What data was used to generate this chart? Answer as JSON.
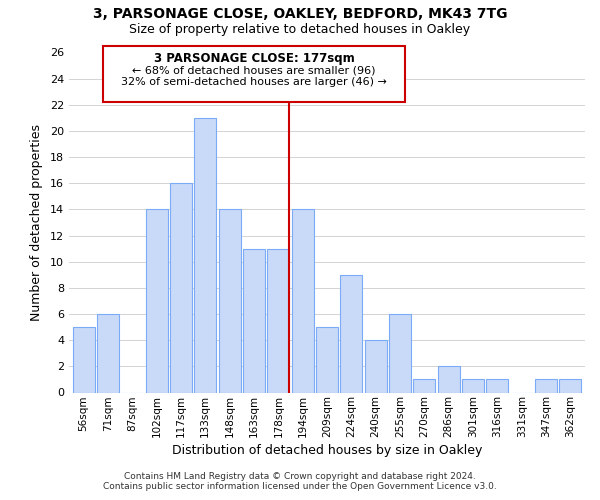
{
  "title": "3, PARSONAGE CLOSE, OAKLEY, BEDFORD, MK43 7TG",
  "subtitle": "Size of property relative to detached houses in Oakley",
  "xlabel": "Distribution of detached houses by size in Oakley",
  "ylabel": "Number of detached properties",
  "bar_labels": [
    "56sqm",
    "71sqm",
    "87sqm",
    "102sqm",
    "117sqm",
    "133sqm",
    "148sqm",
    "163sqm",
    "178sqm",
    "194sqm",
    "209sqm",
    "224sqm",
    "240sqm",
    "255sqm",
    "270sqm",
    "286sqm",
    "301sqm",
    "316sqm",
    "331sqm",
    "347sqm",
    "362sqm"
  ],
  "bar_values": [
    5,
    6,
    0,
    14,
    16,
    21,
    14,
    11,
    11,
    14,
    5,
    9,
    4,
    6,
    1,
    2,
    1,
    1,
    0,
    1,
    1
  ],
  "bar_color": "#c9daf8",
  "bar_edge_color": "#7baaf7",
  "grid_color": "#cccccc",
  "vline_index": 8,
  "vline_color": "#cc0000",
  "annotation_title": "3 PARSONAGE CLOSE: 177sqm",
  "annotation_line1": "← 68% of detached houses are smaller (96)",
  "annotation_line2": "32% of semi-detached houses are larger (46) →",
  "annotation_box_edge": "#cc0000",
  "ylim": [
    0,
    26
  ],
  "yticks": [
    0,
    2,
    4,
    6,
    8,
    10,
    12,
    14,
    16,
    18,
    20,
    22,
    24,
    26
  ],
  "footer1": "Contains HM Land Registry data © Crown copyright and database right 2024.",
  "footer2": "Contains public sector information licensed under the Open Government Licence v3.0."
}
